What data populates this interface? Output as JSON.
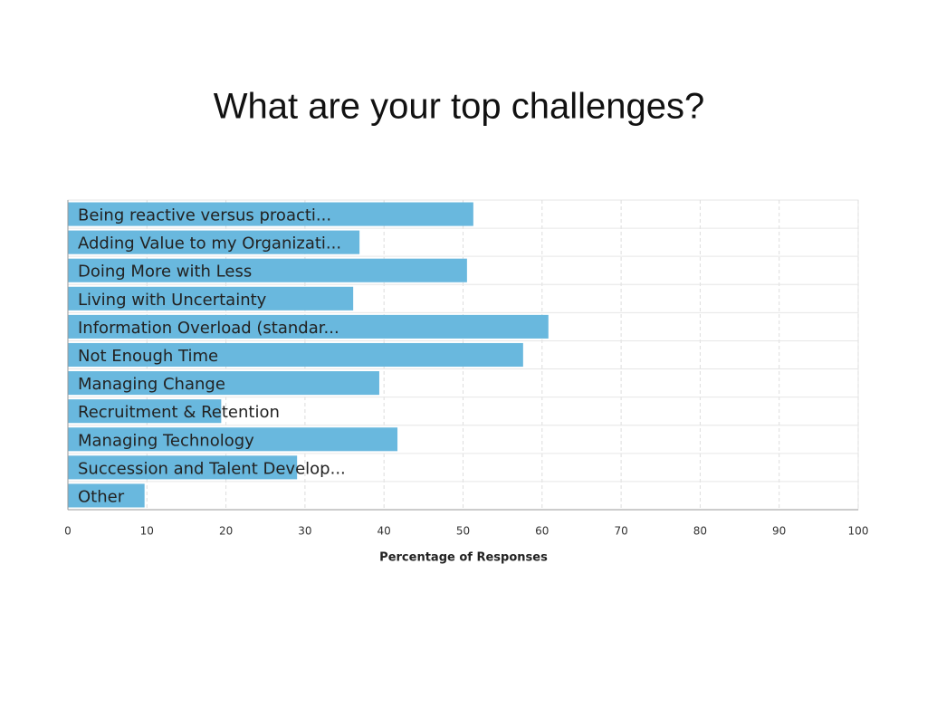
{
  "chart_data": {
    "type": "bar",
    "orientation": "horizontal",
    "title": "What are your top challenges?",
    "x_label": "Percentage of Responses",
    "categories": [
      "Being reactive versus proacti...",
      "Adding Value to my Organizati...",
      "Doing More with Less",
      "Living with Uncertainty",
      "Information Overload (standar...",
      "Not Enough Time",
      "Managing Change",
      "Recruitment & Retention",
      "Managing Technology",
      "Succession and Talent Develop...",
      "Other"
    ],
    "values": [
      51.3,
      36.9,
      50.5,
      36.1,
      60.8,
      57.6,
      39.4,
      19.4,
      41.7,
      29.0,
      9.7
    ],
    "color": "#69b8de",
    "xlim": [
      0,
      100
    ],
    "xticks": [
      0,
      10,
      20,
      30,
      40,
      50,
      60,
      70,
      80,
      90,
      100
    ],
    "grid": true
  }
}
